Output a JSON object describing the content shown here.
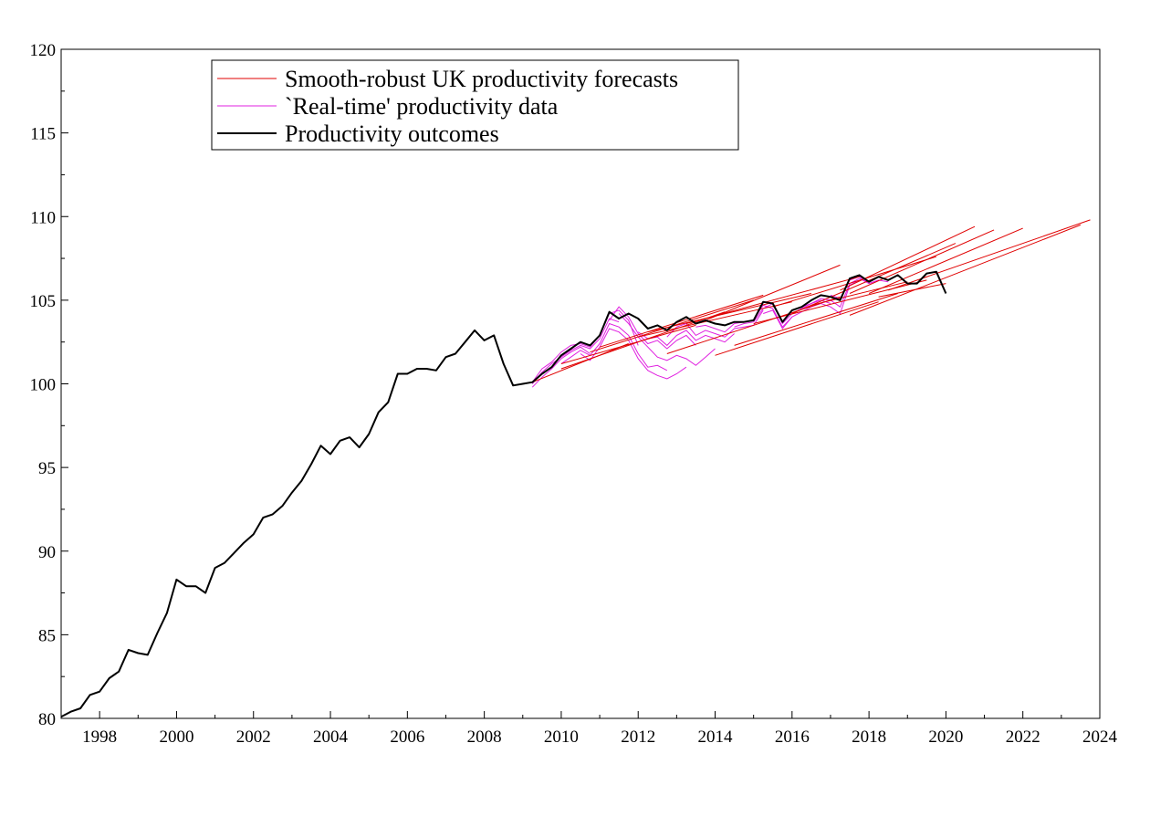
{
  "chart_data": {
    "type": "line",
    "title": "",
    "xlabel": "",
    "ylabel": "",
    "xlim": [
      1997,
      2024
    ],
    "ylim": [
      80,
      120
    ],
    "grid": false,
    "legend_position": "top-left",
    "x_ticks": [
      "1998",
      "2000",
      "2002",
      "2004",
      "2006",
      "2008",
      "2010",
      "2012",
      "2014",
      "2016",
      "2018",
      "2020",
      "2022",
      "2024"
    ],
    "y_ticks": [
      "80",
      "85",
      "90",
      "95",
      "100",
      "105",
      "110",
      "115",
      "120"
    ],
    "legend": [
      {
        "key": "forecasts",
        "label": "Smooth-robust UK productivity forecasts",
        "color": "#e00000"
      },
      {
        "key": "realtime",
        "label": "`Real-time' productivity data",
        "color": "#e020e0"
      },
      {
        "key": "outcomes",
        "label": "Productivity outcomes",
        "color": "#000000"
      }
    ],
    "series": [
      {
        "key": "outcomes",
        "color": "#000000",
        "x": [
          1997.0,
          1997.25,
          1997.5,
          1997.75,
          1998.0,
          1998.25,
          1998.5,
          1998.75,
          1999.0,
          1999.25,
          1999.5,
          1999.75,
          2000.0,
          2000.25,
          2000.5,
          2000.75,
          2001.0,
          2001.25,
          2001.5,
          2001.75,
          2002.0,
          2002.25,
          2002.5,
          2002.75,
          2003.0,
          2003.25,
          2003.5,
          2003.75,
          2004.0,
          2004.25,
          2004.5,
          2004.75,
          2005.0,
          2005.25,
          2005.5,
          2005.75,
          2006.0,
          2006.25,
          2006.5,
          2006.75,
          2007.0,
          2007.25,
          2007.5,
          2007.75,
          2008.0,
          2008.25,
          2008.5,
          2008.75,
          2009.0,
          2009.25,
          2009.5,
          2009.75,
          2010.0,
          2010.25,
          2010.5,
          2010.75,
          2011.0,
          2011.25,
          2011.5,
          2011.75,
          2012.0,
          2012.25,
          2012.5,
          2012.75,
          2013.0,
          2013.25,
          2013.5,
          2013.75,
          2014.0,
          2014.25,
          2014.5,
          2014.75,
          2015.0,
          2015.25,
          2015.5,
          2015.75,
          2016.0,
          2016.25,
          2016.5,
          2016.75,
          2017.0,
          2017.25,
          2017.5,
          2017.75,
          2018.0,
          2018.25,
          2018.5,
          2018.75,
          2019.0,
          2019.25,
          2019.5,
          2019.75,
          2020.0
        ],
        "y": [
          80.1,
          80.4,
          80.6,
          81.4,
          81.6,
          82.4,
          82.8,
          84.1,
          83.9,
          83.8,
          85.1,
          86.3,
          88.3,
          87.9,
          87.9,
          87.5,
          89.0,
          89.3,
          89.9,
          90.5,
          91.0,
          92.0,
          92.2,
          92.7,
          93.5,
          94.2,
          95.2,
          96.3,
          95.8,
          96.6,
          96.8,
          96.2,
          97.0,
          98.3,
          98.9,
          100.6,
          100.6,
          100.9,
          100.9,
          100.8,
          101.6,
          101.8,
          102.5,
          103.2,
          102.6,
          102.9,
          101.2,
          99.9,
          100.0,
          100.1,
          100.6,
          101.0,
          101.7,
          102.1,
          102.5,
          102.3,
          102.9,
          104.3,
          103.9,
          104.2,
          103.9,
          103.3,
          103.5,
          103.2,
          103.7,
          104.0,
          103.6,
          103.8,
          103.6,
          103.5,
          103.7,
          103.7,
          103.8,
          104.9,
          104.8,
          103.7,
          104.4,
          104.6,
          105.0,
          105.3,
          105.2,
          105.0,
          106.3,
          106.5,
          106.1,
          106.4,
          106.2,
          106.5,
          106.0,
          106.0,
          106.6,
          106.7,
          105.4
        ]
      }
    ],
    "realtime_vintages": [
      {
        "x": [
          2009.25,
          2009.5,
          2009.75,
          2010.0,
          2010.25,
          2010.5,
          2010.75
        ],
        "y": [
          99.8,
          100.4,
          100.9,
          101.5,
          101.9,
          102.2,
          101.8
        ]
      },
      {
        "x": [
          2009.25,
          2009.5,
          2009.75,
          2010.0,
          2010.25,
          2010.5,
          2010.75,
          2011.0,
          2011.25,
          2011.5
        ],
        "y": [
          100.0,
          100.7,
          101.2,
          101.6,
          102.0,
          102.3,
          102.1,
          102.7,
          103.9,
          103.7
        ]
      },
      {
        "x": [
          2009.25,
          2009.5,
          2009.75,
          2010.0,
          2010.25,
          2010.5,
          2010.75,
          2011.0,
          2011.25,
          2011.5,
          2011.75,
          2012.0
        ],
        "y": [
          100.1,
          100.9,
          101.3,
          101.9,
          102.3,
          102.4,
          102.2,
          102.9,
          104.2,
          104.4,
          103.8,
          102.3
        ]
      },
      {
        "x": [
          2010.0,
          2010.25,
          2010.5,
          2010.75,
          2011.0,
          2011.25,
          2011.5,
          2011.75,
          2012.0,
          2012.25,
          2012.5,
          2012.75
        ],
        "y": [
          101.2,
          101.6,
          102.0,
          101.7,
          102.4,
          103.6,
          103.4,
          102.9,
          101.8,
          101.0,
          101.1,
          100.8
        ]
      },
      {
        "x": [
          2010.5,
          2010.75,
          2011.0,
          2011.25,
          2011.5,
          2011.75,
          2012.0,
          2012.25,
          2012.5,
          2012.75,
          2013.0,
          2013.25
        ],
        "y": [
          101.8,
          101.4,
          102.2,
          103.3,
          103.1,
          102.6,
          101.5,
          100.8,
          100.5,
          100.3,
          100.6,
          101.0
        ]
      },
      {
        "x": [
          2011.25,
          2011.5,
          2011.75,
          2012.0,
          2012.25,
          2012.5,
          2012.75,
          2013.0,
          2013.25,
          2013.5
        ],
        "y": [
          103.8,
          104.6,
          104.0,
          103.0,
          102.4,
          102.6,
          102.1,
          102.6,
          102.9,
          102.3
        ]
      },
      {
        "x": [
          2011.5,
          2011.75,
          2012.0,
          2012.25,
          2012.5,
          2012.75,
          2013.0,
          2013.25,
          2013.5,
          2013.75,
          2014.0
        ],
        "y": [
          104.2,
          103.6,
          102.8,
          102.2,
          101.6,
          101.4,
          101.7,
          101.5,
          101.1,
          101.6,
          102.1
        ]
      },
      {
        "x": [
          2012.0,
          2012.25,
          2012.5,
          2012.75,
          2013.0,
          2013.25,
          2013.5,
          2013.75,
          2014.0,
          2014.25,
          2014.5
        ],
        "y": [
          103.1,
          102.7,
          102.8,
          102.3,
          102.9,
          103.2,
          102.6,
          102.9,
          102.7,
          102.5,
          103.0
        ]
      },
      {
        "x": [
          2012.75,
          2013.0,
          2013.25,
          2013.5,
          2013.75,
          2014.0,
          2014.25,
          2014.5,
          2014.75,
          2015.0,
          2015.25
        ],
        "y": [
          102.8,
          103.4,
          103.6,
          102.9,
          103.2,
          103.0,
          102.8,
          103.3,
          103.4,
          103.5,
          104.4
        ]
      },
      {
        "x": [
          2013.5,
          2013.75,
          2014.0,
          2014.25,
          2014.5,
          2014.75,
          2015.0,
          2015.25,
          2015.5,
          2015.75,
          2016.0
        ],
        "y": [
          103.4,
          103.5,
          103.3,
          103.1,
          103.6,
          103.7,
          103.8,
          104.7,
          104.5,
          103.4,
          104.0
        ]
      },
      {
        "x": [
          2014.5,
          2014.75,
          2015.0,
          2015.25,
          2015.5,
          2015.75,
          2016.0,
          2016.25,
          2016.5,
          2016.75,
          2017.0
        ],
        "y": [
          103.4,
          103.6,
          103.7,
          104.5,
          104.8,
          103.6,
          104.2,
          104.5,
          104.8,
          105.0,
          104.8
        ]
      },
      {
        "x": [
          2015.25,
          2015.5,
          2015.75,
          2016.0,
          2016.25,
          2016.5,
          2016.75,
          2017.0,
          2017.25,
          2017.5,
          2017.75
        ],
        "y": [
          104.2,
          104.4,
          103.3,
          104.0,
          104.3,
          104.6,
          104.8,
          104.6,
          104.2,
          105.9,
          106.2
        ]
      },
      {
        "x": [
          2016.25,
          2016.5,
          2016.75,
          2017.0,
          2017.25,
          2017.5,
          2017.75,
          2018.0,
          2018.25
        ],
        "y": [
          104.6,
          104.8,
          105.1,
          105.0,
          104.6,
          106.0,
          106.3,
          106.0,
          106.2
        ]
      },
      {
        "x": [
          2017.0,
          2017.25,
          2017.5,
          2017.75,
          2018.0,
          2018.25,
          2018.5
        ],
        "y": [
          105.3,
          105.1,
          106.2,
          106.4,
          106.0,
          106.2,
          106.1
        ]
      }
    ],
    "forecast_lines": [
      {
        "x": [
          2009.25,
          2011.75
        ],
        "y": [
          100.1,
          102.4
        ]
      },
      {
        "x": [
          2010.0,
          2013.5
        ],
        "y": [
          101.2,
          103.5
        ]
      },
      {
        "x": [
          2010.0,
          2014.25
        ],
        "y": [
          100.9,
          104.3
        ]
      },
      {
        "x": [
          2010.75,
          2015.0
        ],
        "y": [
          101.9,
          105.0
        ]
      },
      {
        "x": [
          2011.0,
          2015.25
        ],
        "y": [
          102.2,
          105.3
        ]
      },
      {
        "x": [
          2012.0,
          2016.0
        ],
        "y": [
          102.8,
          104.9
        ]
      },
      {
        "x": [
          2012.25,
          2016.5
        ],
        "y": [
          103.1,
          105.4
        ]
      },
      {
        "x": [
          2012.75,
          2017.25
        ],
        "y": [
          101.8,
          105.2
        ]
      },
      {
        "x": [
          2013.25,
          2017.75
        ],
        "y": [
          103.6,
          106.4
        ]
      },
      {
        "x": [
          2014.0,
          2018.25
        ],
        "y": [
          101.7,
          104.9
        ]
      },
      {
        "x": [
          2014.5,
          2018.75
        ],
        "y": [
          102.3,
          105.4
        ]
      },
      {
        "x": [
          2015.0,
          2019.5
        ],
        "y": [
          103.6,
          106.2
        ]
      },
      {
        "x": [
          2013.75,
          2017.25
        ],
        "y": [
          103.8,
          107.1
        ]
      },
      {
        "x": [
          2015.5,
          2019.75
        ],
        "y": [
          104.6,
          107.6
        ]
      },
      {
        "x": [
          2016.0,
          2020.25
        ],
        "y": [
          104.2,
          108.4
        ]
      },
      {
        "x": [
          2017.25,
          2020.75
        ],
        "y": [
          105.6,
          109.4
        ]
      },
      {
        "x": [
          2017.5,
          2021.25
        ],
        "y": [
          105.4,
          109.2
        ]
      },
      {
        "x": [
          2018.0,
          2022.0
        ],
        "y": [
          105.4,
          109.3
        ]
      },
      {
        "x": [
          2017.5,
          2023.5
        ],
        "y": [
          104.1,
          109.5
        ]
      },
      {
        "x": [
          2018.5,
          2023.75
        ],
        "y": [
          105.6,
          109.8
        ]
      },
      {
        "x": [
          2018.25,
          2020.0
        ],
        "y": [
          105.2,
          106.0
        ]
      },
      {
        "x": [
          2016.5,
          2019.0
        ],
        "y": [
          104.7,
          106.1
        ]
      }
    ]
  }
}
